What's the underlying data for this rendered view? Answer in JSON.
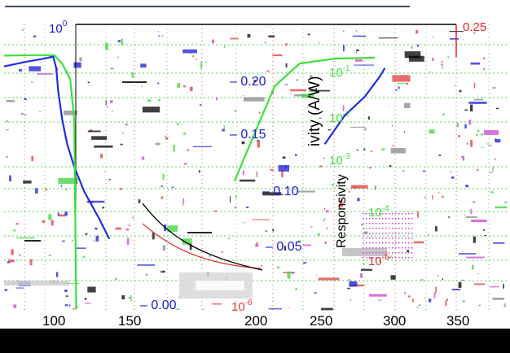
{
  "chart_data": {
    "type": "line",
    "title": "",
    "xlabel": "",
    "ylabel_left": "",
    "ylabel_right_top_fragment": "ivity (A/W)",
    "ylabel_right_bottom_fragment": "Responsivity",
    "x_ticks": [
      "100",
      "150",
      "200",
      "250",
      "300",
      "350"
    ],
    "left_axis": {
      "scale": "log",
      "top_label": "10",
      "top_label_exp": "0",
      "color": "#1a1ad6"
    },
    "right_axis": {
      "top_label": "0.25",
      "color": "#e8202a",
      "ticks": [
        "0.20",
        "0.15",
        "0.10",
        "0.05",
        "0.00"
      ]
    },
    "inner_log_ticks": [
      {
        "base": "10",
        "exp": "-1"
      },
      {
        "base": "10",
        "exp": "-2"
      },
      {
        "base": "10",
        "exp": "-3"
      },
      {
        "base": "10",
        "exp": "-4"
      },
      {
        "base": "10",
        "exp": "-5"
      },
      {
        "base": "10",
        "exp": "-6"
      }
    ],
    "series": [
      {
        "color": "#1f2ee0",
        "values": [
          [
            100,
            0.13
          ],
          [
            120,
            0.16
          ],
          [
            140,
            0.19
          ],
          [
            149,
            0.21
          ],
          [
            152,
            0.12
          ],
          [
            154,
            0.04
          ],
          [
            158,
            0.01
          ],
          [
            163,
            0.003
          ],
          [
            170,
            0.001
          ],
          [
            180,
            0.0003
          ],
          [
            195,
            8e-05
          ],
          [
            205,
            3e-05
          ]
        ]
      },
      {
        "color": "#3ce03c",
        "values": [
          [
            100,
            0.22
          ],
          [
            130,
            0.225
          ],
          [
            150,
            0.225
          ],
          [
            158,
            0.15
          ],
          [
            166,
            0.07
          ],
          [
            170,
            0.01
          ],
          [
            172,
            0.0
          ]
        ]
      },
      {
        "color": "#3ce03c",
        "values": [
          [
            330,
            0.0005
          ],
          [
            350,
            0.005
          ],
          [
            370,
            0.05
          ],
          [
            395,
            0.15
          ],
          [
            430,
            0.19
          ],
          [
            470,
            0.2
          ]
        ]
      },
      {
        "color": "#1f2ee0",
        "values": [
          [
            420,
            0.003
          ],
          [
            440,
            0.012
          ],
          [
            460,
            0.03
          ],
          [
            475,
            0.08
          ],
          [
            480,
            0.12
          ]
        ]
      }
    ]
  },
  "colors": {
    "left_axis": "#1a1ad6",
    "right_axis": "#e8202a",
    "grid_green": "#3cd33c",
    "grid_red": "#e23a3a",
    "curve_blue": "#1f2ee0",
    "curve_green": "#3ce03c"
  }
}
